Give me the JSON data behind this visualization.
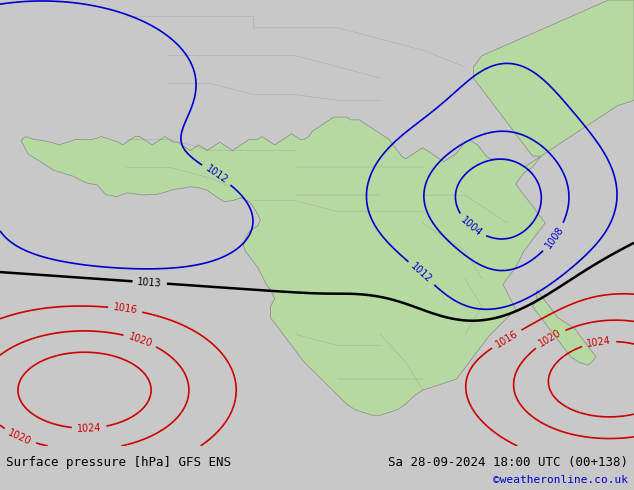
{
  "title_left": "Surface pressure [hPa] GFS ENS",
  "title_right": "Sa 28-09-2024 18:00 UTC (00+138)",
  "credit": "©weatheronline.co.uk",
  "bg_color": "#d0d0d0",
  "land_color": "#b5d9a0",
  "ocean_color": "#dcdcdc",
  "contour_blue_color": "#0000cc",
  "contour_red_color": "#cc0000",
  "contour_black_color": "#000000",
  "label_fontsize": 9,
  "footer_fontsize": 9,
  "credit_fontsize": 8,
  "credit_color": "#0000cc"
}
